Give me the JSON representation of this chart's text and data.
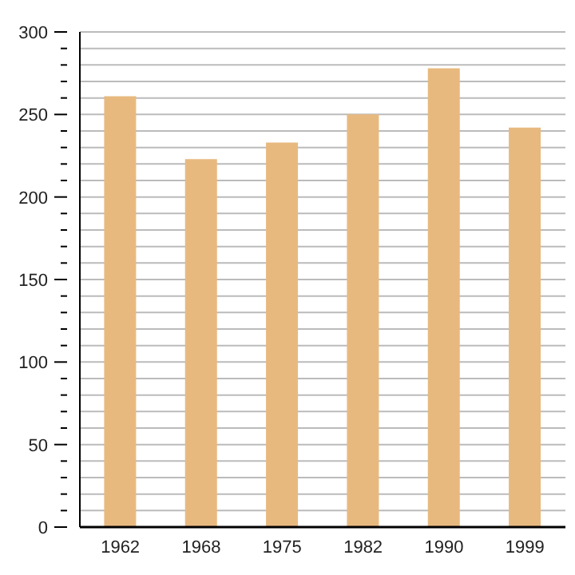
{
  "chart_data": {
    "type": "bar",
    "categories": [
      "1962",
      "1968",
      "1975",
      "1982",
      "1990",
      "1999"
    ],
    "values": [
      261,
      223,
      233,
      250,
      278,
      242
    ],
    "color": "#e8b97f",
    "ylim": [
      0,
      300
    ],
    "yticks": [
      0,
      {
        "value": 10,
        "label": null
      },
      {
        "value": 20,
        "label": null
      },
      {
        "value": 30,
        "label": null
      },
      {
        "value": 40,
        "label": null
      },
      50,
      {
        "value": 60,
        "label": null
      },
      {
        "value": 70,
        "label": null
      },
      {
        "value": 80,
        "label": null
      },
      {
        "value": 90,
        "label": null
      },
      100,
      {
        "value": 110,
        "label": null
      },
      {
        "value": 120,
        "label": null
      },
      {
        "value": 130,
        "label": null
      },
      {
        "value": 140,
        "label": null
      },
      150,
      {
        "value": 160,
        "label": null
      },
      {
        "value": 170,
        "label": null
      },
      {
        "value": 180,
        "label": null
      },
      {
        "value": 190,
        "label": null
      },
      200,
      {
        "value": 210,
        "label": null
      },
      {
        "value": 220,
        "label": null
      },
      {
        "value": 230,
        "label": null
      },
      {
        "value": 240,
        "label": null
      },
      250,
      {
        "value": 260,
        "label": null
      },
      {
        "value": 270,
        "label": null
      },
      {
        "value": 280,
        "label": null
      },
      {
        "value": 290,
        "label": null
      },
      300
    ],
    "grid": true
  }
}
